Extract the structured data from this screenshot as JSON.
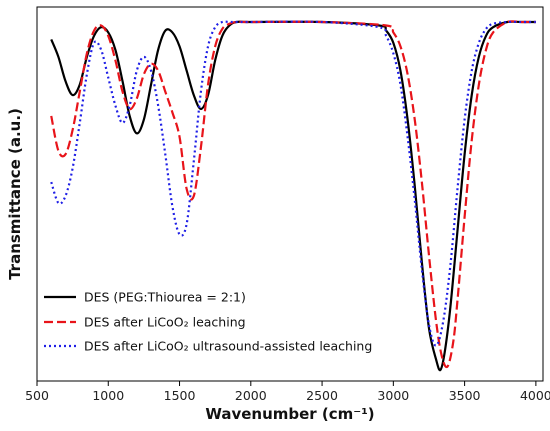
{
  "chart_data": {
    "type": "line",
    "xlabel": "Wavenumber (cm⁻¹)",
    "ylabel": "Transmittance (a.u.)",
    "xlim": [
      500,
      4050
    ],
    "ylim": [
      0,
      1
    ],
    "xticks": [
      500,
      1000,
      1500,
      2000,
      2500,
      3000,
      3500,
      4000
    ],
    "legend": "lower-left",
    "grid": false,
    "series": [
      {
        "name": "DES (PEG:Thiourea = 2:1)",
        "color": "#000000",
        "dash": "solid",
        "x": [
          600,
          650,
          700,
          750,
          800,
          850,
          900,
          950,
          1000,
          1050,
          1100,
          1150,
          1200,
          1250,
          1300,
          1350,
          1400,
          1450,
          1500,
          1550,
          1600,
          1650,
          1700,
          1750,
          1800,
          1850,
          1900,
          2000,
          2500,
          2900,
          2950,
          3000,
          3050,
          3100,
          3150,
          3200,
          3250,
          3300,
          3330,
          3360,
          3400,
          3450,
          3500,
          3550,
          3600,
          3650,
          3700,
          3800,
          3900,
          4000
        ],
        "y": [
          0.95,
          0.9,
          0.83,
          0.79,
          0.82,
          0.9,
          0.96,
          0.985,
          0.97,
          0.92,
          0.83,
          0.73,
          0.68,
          0.72,
          0.82,
          0.92,
          0.975,
          0.97,
          0.93,
          0.86,
          0.79,
          0.75,
          0.79,
          0.89,
          0.96,
          0.99,
          1.0,
          1.0,
          1.0,
          0.99,
          0.975,
          0.94,
          0.86,
          0.72,
          0.53,
          0.31,
          0.12,
          0.03,
          0.0,
          0.05,
          0.18,
          0.4,
          0.62,
          0.79,
          0.9,
          0.96,
          0.985,
          1.0,
          1.0,
          1.0
        ]
      },
      {
        "name": "DES after LiCoO₂ leaching",
        "color": "#e8141a",
        "dash": "dashed",
        "x": [
          600,
          650,
          700,
          750,
          800,
          850,
          900,
          950,
          1000,
          1050,
          1100,
          1150,
          1200,
          1250,
          1300,
          1350,
          1400,
          1450,
          1500,
          1550,
          1600,
          1650,
          1700,
          1750,
          1800,
          1850,
          1900,
          2000,
          2500,
          2950,
          3000,
          3050,
          3100,
          3150,
          3200,
          3250,
          3300,
          3340,
          3380,
          3420,
          3450,
          3500,
          3550,
          3600,
          3650,
          3700,
          3800,
          3900,
          4000
        ],
        "y": [
          0.73,
          0.63,
          0.62,
          0.69,
          0.8,
          0.91,
          0.975,
          0.99,
          0.96,
          0.89,
          0.8,
          0.75,
          0.78,
          0.85,
          0.88,
          0.86,
          0.8,
          0.74,
          0.67,
          0.52,
          0.5,
          0.64,
          0.82,
          0.93,
          0.98,
          0.995,
          1.0,
          1.0,
          1.0,
          0.99,
          0.97,
          0.93,
          0.85,
          0.72,
          0.54,
          0.33,
          0.14,
          0.04,
          0.01,
          0.08,
          0.2,
          0.44,
          0.66,
          0.82,
          0.92,
          0.97,
          1.0,
          1.0,
          1.0
        ]
      },
      {
        "name": "DES after LiCoO₂ ultrasound-assisted leaching",
        "color": "#1f1fe6",
        "dash": "dotted",
        "x": [
          600,
          650,
          700,
          750,
          800,
          850,
          900,
          950,
          1000,
          1050,
          1100,
          1150,
          1200,
          1250,
          1300,
          1350,
          1400,
          1450,
          1500,
          1550,
          1600,
          1650,
          1700,
          1750,
          1800,
          1850,
          1900,
          2000,
          2500,
          2900,
          2950,
          3000,
          3050,
          3100,
          3150,
          3200,
          3250,
          3300,
          3350,
          3400,
          3450,
          3500,
          3550,
          3600,
          3650,
          3700,
          3800,
          3900,
          4000
        ],
        "y": [
          0.54,
          0.48,
          0.5,
          0.58,
          0.71,
          0.85,
          0.94,
          0.92,
          0.84,
          0.76,
          0.71,
          0.76,
          0.86,
          0.9,
          0.86,
          0.76,
          0.62,
          0.47,
          0.39,
          0.42,
          0.6,
          0.8,
          0.93,
          0.985,
          1.0,
          1.0,
          1.0,
          1.0,
          1.0,
          0.985,
          0.96,
          0.91,
          0.82,
          0.67,
          0.49,
          0.29,
          0.13,
          0.07,
          0.14,
          0.3,
          0.52,
          0.72,
          0.86,
          0.94,
          0.98,
          0.995,
          1.0,
          1.0,
          1.0
        ]
      }
    ]
  }
}
